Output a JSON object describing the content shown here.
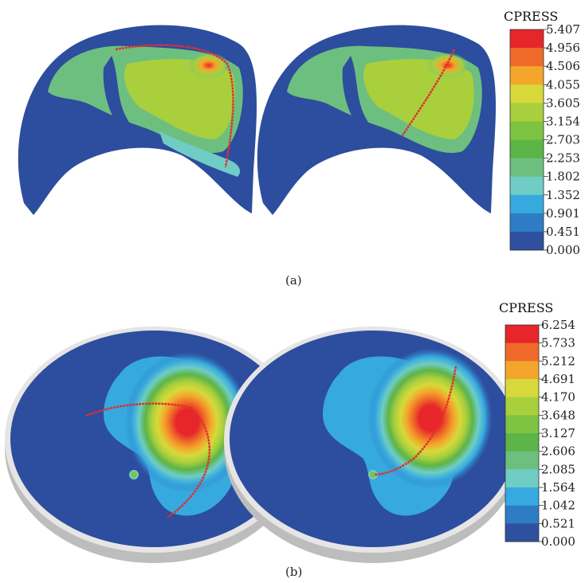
{
  "panel_a": {
    "caption": "(a)",
    "legend": {
      "title": "CPRESS",
      "ticks": [
        "5.407",
        "4.956",
        "4.506",
        "4.055",
        "3.605",
        "3.154",
        "2.703",
        "2.253",
        "1.802",
        "1.352",
        "0.901",
        "0.451",
        "0.000"
      ],
      "colors": [
        "#e6262a",
        "#ef6a28",
        "#f4a62c",
        "#d7d93a",
        "#a9cf3d",
        "#7fc342",
        "#5db447",
        "#6dbf7f",
        "#6fcdc5",
        "#36a9df",
        "#2e7cc4",
        "#2f4f9f"
      ]
    }
  },
  "panel_b": {
    "caption": "(b)",
    "legend": {
      "title": "CPRESS",
      "ticks": [
        "6.254",
        "5.733",
        "5.212",
        "4.691",
        "4.170",
        "3.648",
        "3.127",
        "2.606",
        "2.085",
        "1.564",
        "1.042",
        "0.521",
        "0.000"
      ],
      "colors": [
        "#e6262a",
        "#ef6a28",
        "#f4a62c",
        "#d7d93a",
        "#a9cf3d",
        "#7fc342",
        "#5db447",
        "#6dbf7f",
        "#6fcdc5",
        "#36a9df",
        "#2e7cc4",
        "#2f4f9f"
      ]
    }
  },
  "colors": {
    "background_blue": "#2d4d9e",
    "path_red": "#e03030",
    "rim_gray": "#d9d9d9"
  }
}
